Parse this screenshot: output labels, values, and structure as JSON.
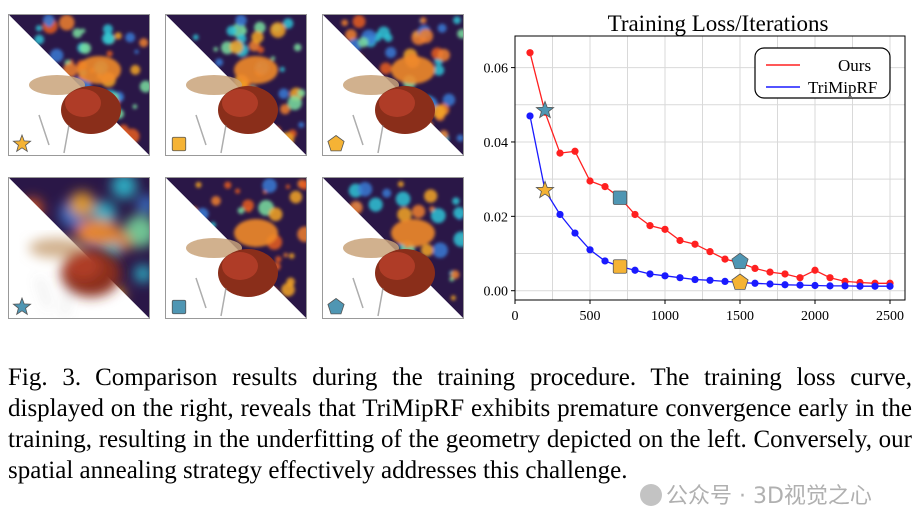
{
  "panels": [
    {
      "id": "top-1",
      "marker": "star",
      "marker_color": "#f5b335",
      "style": "noisy"
    },
    {
      "id": "top-2",
      "marker": "square",
      "marker_color": "#f5b335",
      "style": "noisy"
    },
    {
      "id": "top-3",
      "marker": "pentagon",
      "marker_color": "#f5b335",
      "style": "noisy"
    },
    {
      "id": "bottom-1",
      "marker": "star",
      "marker_color": "#4f96b3",
      "style": "blurry"
    },
    {
      "id": "bottom-2",
      "marker": "square",
      "marker_color": "#4f96b3",
      "style": "smooth"
    },
    {
      "id": "bottom-3",
      "marker": "pentagon",
      "marker_color": "#4f96b3",
      "style": "smooth"
    }
  ],
  "chart_data": {
    "type": "line",
    "title": "Training Loss/Iterations",
    "xlabel": "",
    "ylabel": "",
    "xlim": [
      0,
      2600
    ],
    "ylim": [
      -0.0025,
      0.0685
    ],
    "xticks": [
      0,
      500,
      1000,
      1500,
      2000,
      2500
    ],
    "yticks": [
      0.0,
      0.02,
      0.04,
      0.06
    ],
    "ytick_labels": [
      "0.00",
      "0.02",
      "0.04",
      "0.06"
    ],
    "grid": true,
    "legend_position": "top-right",
    "series": [
      {
        "name": "Ours",
        "color": "#ff2020",
        "x": [
          100,
          200,
          300,
          400,
          500,
          600,
          700,
          800,
          900,
          1000,
          1100,
          1200,
          1300,
          1400,
          1500,
          1600,
          1700,
          1800,
          1900,
          2000,
          2100,
          2200,
          2300,
          2400,
          2500
        ],
        "y": [
          0.064,
          0.048,
          0.037,
          0.0375,
          0.0295,
          0.028,
          0.025,
          0.0205,
          0.0175,
          0.0165,
          0.0135,
          0.0125,
          0.0105,
          0.0085,
          0.0075,
          0.006,
          0.005,
          0.0045,
          0.0035,
          0.0055,
          0.0035,
          0.0025,
          0.0022,
          0.002,
          0.002
        ]
      },
      {
        "name": "TriMipRF",
        "color": "#1a1aff",
        "x": [
          100,
          200,
          300,
          400,
          500,
          600,
          700,
          800,
          900,
          1000,
          1100,
          1200,
          1300,
          1400,
          1500,
          1600,
          1700,
          1800,
          1900,
          2000,
          2100,
          2200,
          2300,
          2400,
          2500
        ],
        "y": [
          0.047,
          0.027,
          0.0205,
          0.0155,
          0.011,
          0.008,
          0.0065,
          0.0055,
          0.0045,
          0.004,
          0.0035,
          0.003,
          0.0028,
          0.0025,
          0.0022,
          0.002,
          0.0018,
          0.0016,
          0.0015,
          0.0014,
          0.0013,
          0.0013,
          0.0012,
          0.0012,
          0.0012
        ]
      }
    ],
    "annotations": [
      {
        "marker": "star",
        "color": "#f5b335",
        "x": 200,
        "y": 0.027
      },
      {
        "marker": "star",
        "color": "#4f96b3",
        "x": 200,
        "y": 0.0485
      },
      {
        "marker": "square",
        "color": "#f5b335",
        "x": 700,
        "y": 0.0065
      },
      {
        "marker": "square",
        "color": "#4f96b3",
        "x": 700,
        "y": 0.025
      },
      {
        "marker": "pentagon",
        "color": "#f5b335",
        "x": 1500,
        "y": 0.0022
      },
      {
        "marker": "pentagon",
        "color": "#4f96b3",
        "x": 1500,
        "y": 0.0078
      }
    ]
  },
  "caption": {
    "label": "Fig. 3.",
    "text": "Comparison results during the training procedure. The training loss curve, displayed on the right, reveals that TriMipRF exhibits premature convergence early in the training, resulting in the underfitting of the geometry depicted on the left. Conversely, our spatial annealing strategy effectively addresses this challenge."
  },
  "watermark": "公众号 · 3D视觉之心"
}
